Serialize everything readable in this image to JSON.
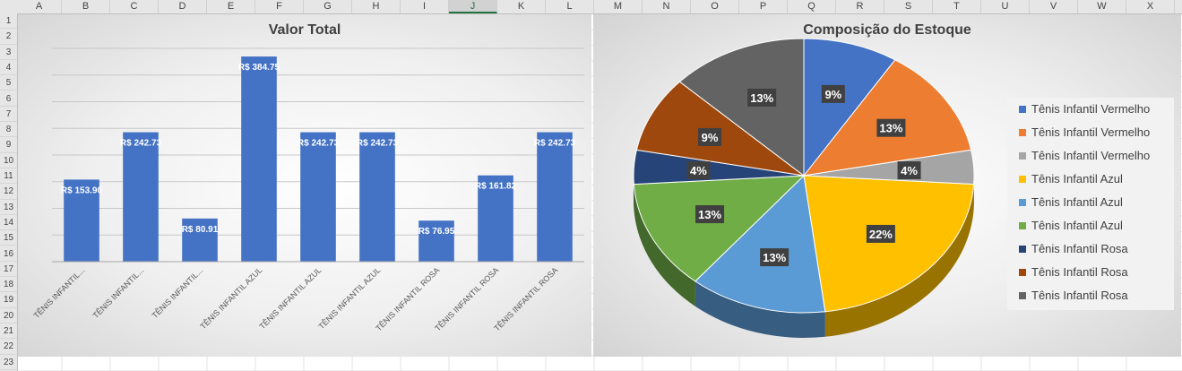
{
  "spreadsheet": {
    "columns": [
      "A",
      "B",
      "C",
      "D",
      "E",
      "F",
      "G",
      "H",
      "I",
      "J",
      "K",
      "L",
      "M",
      "N",
      "O",
      "P",
      "Q",
      "R",
      "S",
      "T",
      "U",
      "V",
      "W",
      "X"
    ],
    "selected_column": "J",
    "rows": [
      "1",
      "2",
      "3",
      "4",
      "5",
      "6",
      "7",
      "8",
      "9",
      "10",
      "11",
      "12",
      "13",
      "14",
      "15",
      "16",
      "17",
      "18",
      "19",
      "20",
      "21",
      "22",
      "23"
    ]
  },
  "colors": {
    "bar": "#4472c4",
    "pie": [
      "#4472c4",
      "#ed7d31",
      "#a5a5a5",
      "#ffc000",
      "#5b9bd5",
      "#70ad47",
      "#264478",
      "#9e480e",
      "#636363"
    ]
  },
  "chart_data": [
    {
      "type": "bar",
      "title": "Valor Total",
      "categories": [
        "TÊNIS INFANTIL...",
        "TÊNIS INFANTIL...",
        "TÊNIS INFANTIL...",
        "TÊNIS INFANTIL AZUL",
        "TÊNIS INFANTIL AZUL",
        "TÊNIS INFANTIL AZUL",
        "TÊNIS INFANTIL ROSA",
        "TÊNIS INFANTIL ROSA",
        "TÊNIS INFANTIL ROSA"
      ],
      "values": [
        153.9,
        242.73,
        80.91,
        384.75,
        242.73,
        242.73,
        76.95,
        161.82,
        242.73
      ],
      "data_labels": [
        "R$ 153.90",
        "R$ 242.73",
        "R$ 80.91",
        "R$ 384.75",
        "R$ 242.73",
        "R$ 242.73",
        "R$ 76.95",
        "R$ 161.82",
        "R$ 242.73"
      ],
      "ylim": [
        0,
        400
      ],
      "grid": true
    },
    {
      "type": "pie",
      "title": "Composição do Estoque",
      "labels": [
        "Tênis Infantil Vermelho",
        "Tênis Infantil Vermelho",
        "Tênis Infantil Vermelho",
        "Tênis Infantil Azul",
        "Tênis Infantil Azul",
        "Tênis Infantil Azul",
        "Tênis Infantil Rosa",
        "Tênis Infantil Rosa",
        "Tênis Infantil Rosa"
      ],
      "values": [
        9,
        13,
        4,
        22,
        13,
        13,
        4,
        9,
        13
      ],
      "data_labels": [
        "9%",
        "13%",
        "4%",
        "22%",
        "13%",
        "13%",
        "4%",
        "9%",
        "13%"
      ],
      "legend": "right"
    }
  ]
}
